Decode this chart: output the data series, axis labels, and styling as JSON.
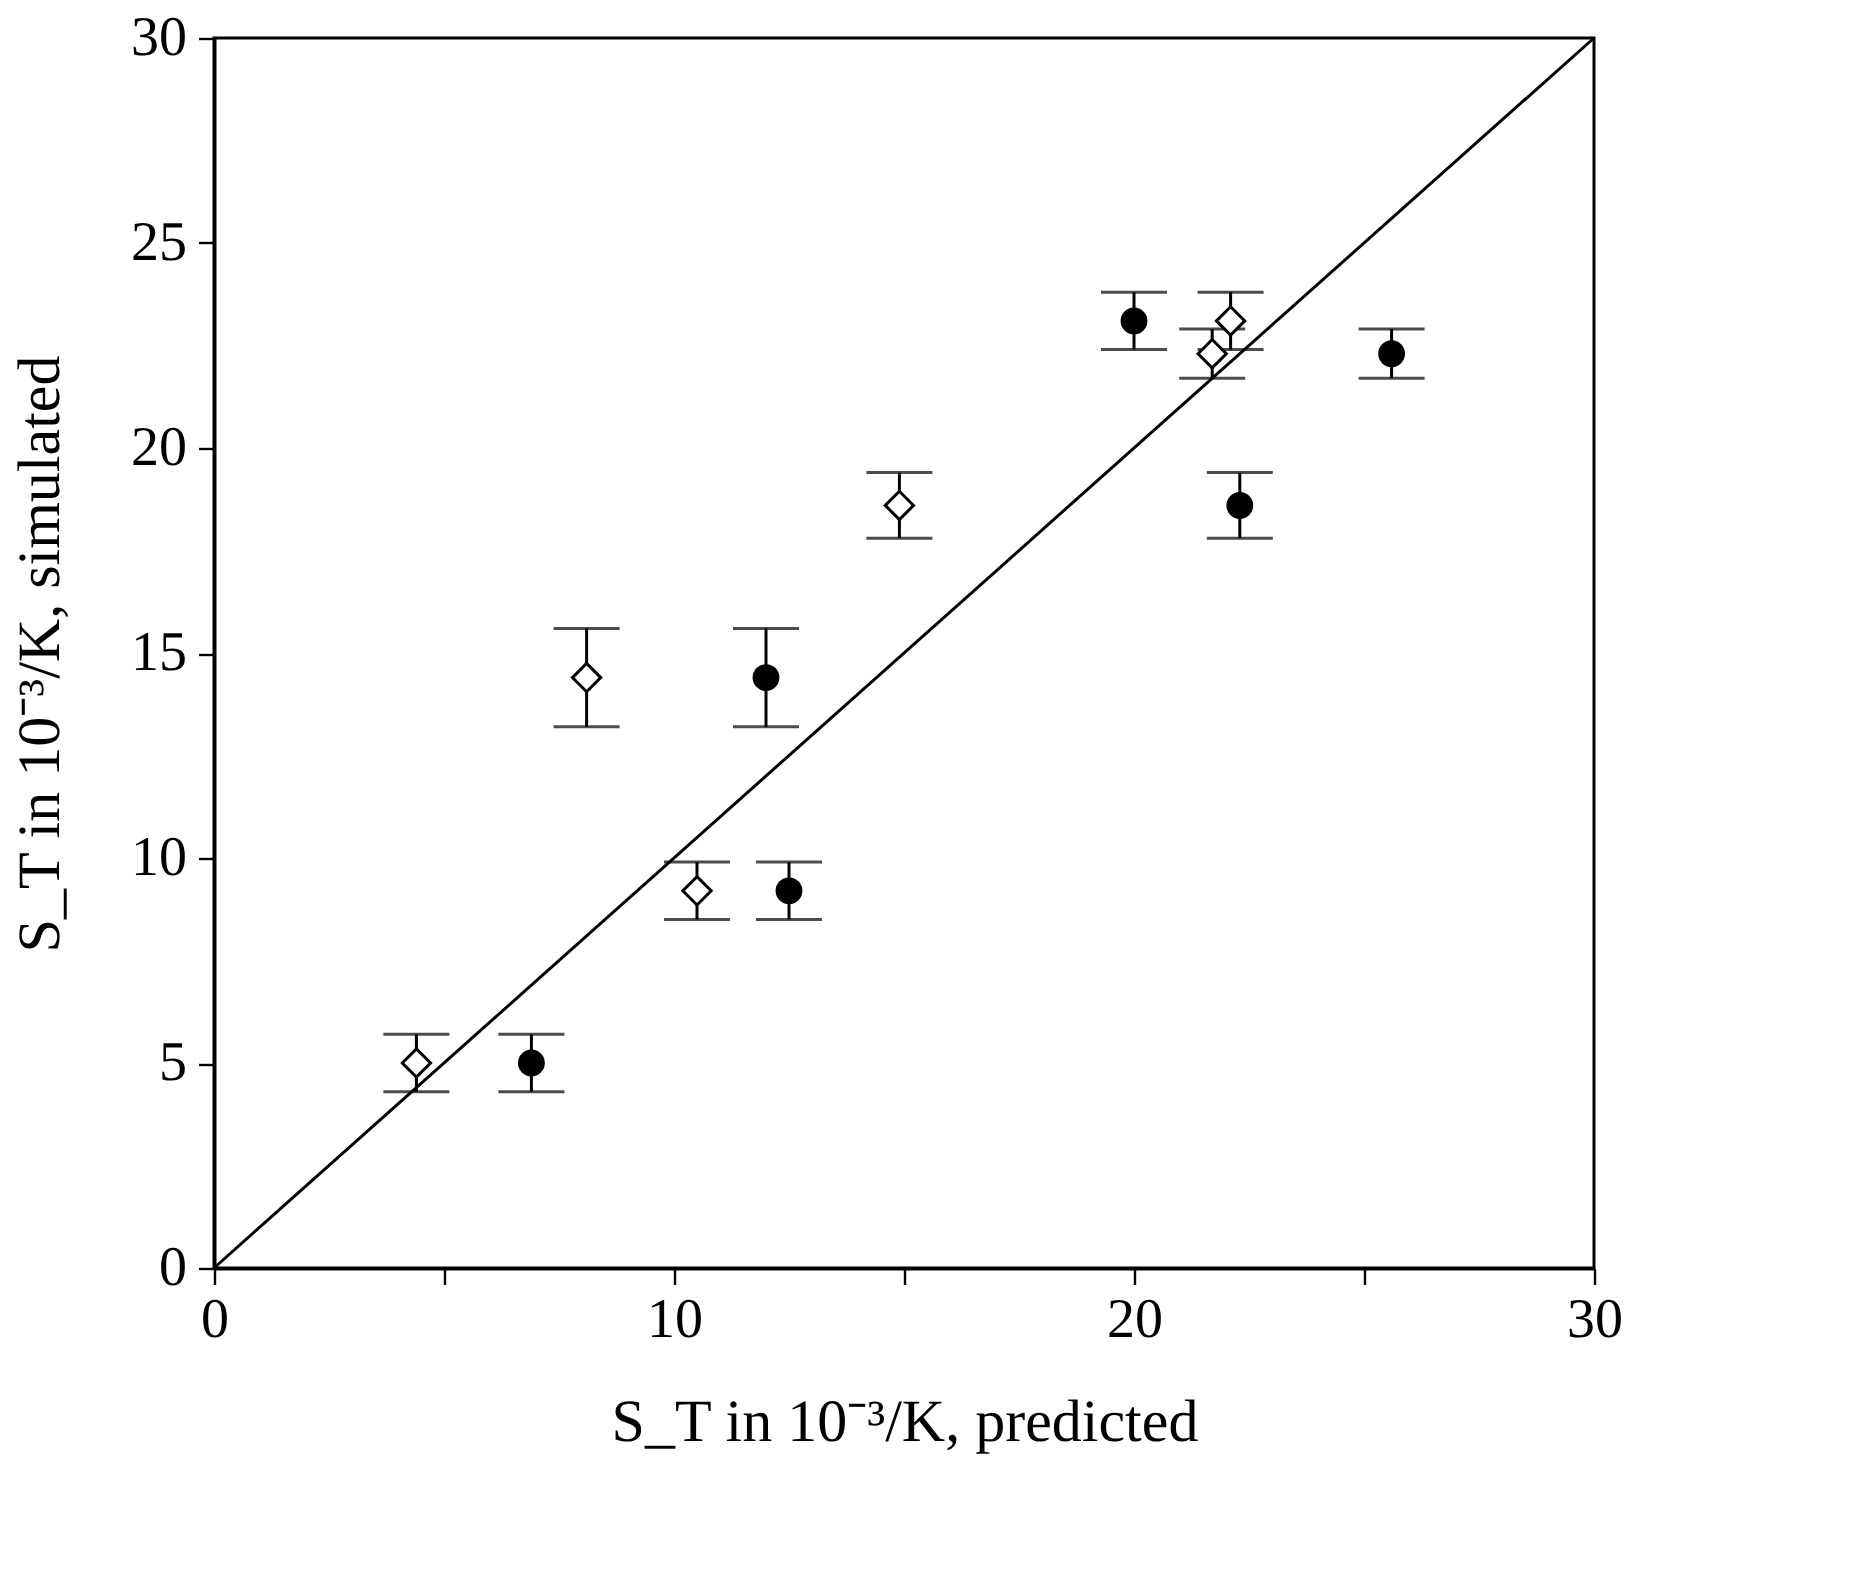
{
  "chart_data": {
    "type": "scatter",
    "xlabel": "S_T in 10⁻³/K, predicted",
    "ylabel": "S_T in 10⁻³/K, simulated",
    "series": [
      {
        "color": "#000000",
        "marker": "circle",
        "x": [
          6.9,
          12.0,
          12.5,
          20.0,
          22.3,
          25.6
        ],
        "values": [
          5.0,
          14.4,
          9.2,
          23.1,
          18.6,
          22.3
        ],
        "errors": [
          0.7,
          1.2,
          0.7,
          0.7,
          0.8,
          0.6
        ]
      },
      {
        "color": "#000000",
        "marker": "diamond",
        "x": [
          4.4,
          8.1,
          10.5,
          14.9,
          21.7,
          22.1
        ],
        "values": [
          5.0,
          14.4,
          9.2,
          18.6,
          22.3,
          23.1
        ],
        "errors": [
          0.7,
          1.2,
          0.7,
          0.8,
          0.6,
          0.7
        ]
      },
      {
        "type": "line",
        "color": "#000000",
        "marker": "none",
        "x": [
          0,
          30
        ],
        "values": [
          0,
          30
        ]
      }
    ],
    "xlim": [
      0,
      30
    ],
    "ylim": [
      0,
      30
    ],
    "xticks": [
      0,
      {
        "value": 5,
        "label": null
      },
      10,
      {
        "value": 15,
        "label": null
      },
      20,
      {
        "value": 25,
        "label": null
      },
      30
    ],
    "yticks": [
      0,
      5,
      10,
      15,
      20,
      25,
      30
    ],
    "grid": false
  }
}
